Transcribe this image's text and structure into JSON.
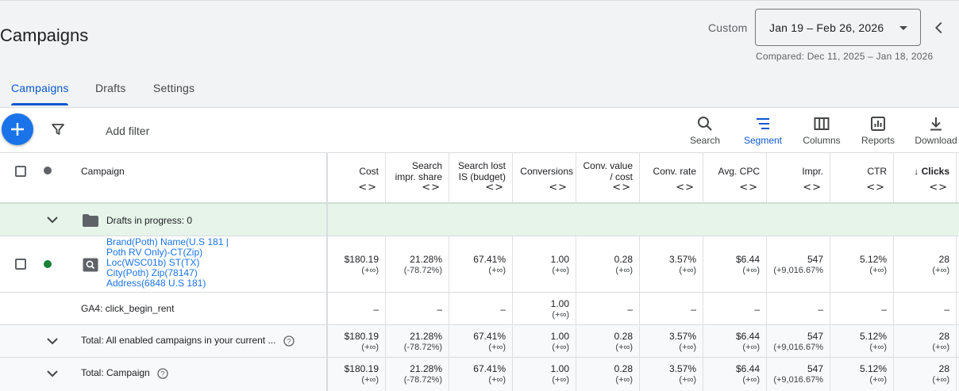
{
  "page": {
    "title": "Campaigns",
    "date_range_label": "Custom",
    "date_range": "Jan 19 – Feb 26, 2026",
    "compared": "Compared: Dec 11, 2025 – Jan 18, 2026"
  },
  "tabs": [
    {
      "label": "Campaigns",
      "active": true
    },
    {
      "label": "Drafts",
      "active": false
    },
    {
      "label": "Settings",
      "active": false
    }
  ],
  "toolbar": {
    "add_filter": "Add filter",
    "tools": [
      {
        "label": "Search",
        "icon": "search-icon"
      },
      {
        "label": "Segment",
        "icon": "segment-icon",
        "active": true
      },
      {
        "label": "Columns",
        "icon": "columns-icon"
      },
      {
        "label": "Reports",
        "icon": "reports-icon"
      },
      {
        "label": "Download",
        "icon": "download-icon"
      }
    ]
  },
  "table": {
    "campaign_header": "Campaign",
    "columns": [
      {
        "l1": "Cost",
        "l2": ""
      },
      {
        "l1": "Search",
        "l2": "impr. share"
      },
      {
        "l1": "Search lost",
        "l2": "IS (budget)"
      },
      {
        "l1": "Conversions",
        "l2": ""
      },
      {
        "l1": "Conv. value",
        "l2": "/ cost"
      },
      {
        "l1": "Conv. rate",
        "l2": ""
      },
      {
        "l1": "Avg. CPC",
        "l2": ""
      },
      {
        "l1": "Impr.",
        "l2": ""
      },
      {
        "l1": "CTR",
        "l2": ""
      },
      {
        "l1": "↓ Clicks",
        "l2": ""
      }
    ],
    "drafts_row": {
      "label": "Drafts in progress: 0"
    },
    "campaign_row": {
      "name": "Brand(Poth) Name(U.S 181 | Poth RV Only)-CT(Zip) Loc(WSC01b) ST(TX) City(Poth) Zip(78147) Address(6848 U.S 181)",
      "values": [
        {
          "v": "$180.19",
          "d": "(+∞)"
        },
        {
          "v": "21.28%",
          "d": "(-78.72%)"
        },
        {
          "v": "67.41%",
          "d": "(+∞)"
        },
        {
          "v": "1.00",
          "d": "(+∞)"
        },
        {
          "v": "0.28",
          "d": "(+∞)"
        },
        {
          "v": "3.57%",
          "d": "(+∞)"
        },
        {
          "v": "$6.44",
          "d": "(+∞)"
        },
        {
          "v": "547",
          "d": "(+9,016.67%"
        },
        {
          "v": "5.12%",
          "d": "(+∞)"
        },
        {
          "v": "28",
          "d": "(+∞)"
        }
      ]
    },
    "ga4_row": {
      "label": "GA4: click_begin_rent",
      "values": [
        {
          "v": "–",
          "d": ""
        },
        {
          "v": "–",
          "d": ""
        },
        {
          "v": "–",
          "d": ""
        },
        {
          "v": "1.00",
          "d": "(+∞)"
        },
        {
          "v": "–",
          "d": ""
        },
        {
          "v": "–",
          "d": ""
        },
        {
          "v": "–",
          "d": ""
        },
        {
          "v": "–",
          "d": ""
        },
        {
          "v": "–",
          "d": ""
        },
        {
          "v": "–",
          "d": ""
        }
      ]
    },
    "total_enabled_row": {
      "label": "Total: All enabled campaigns in your current ...",
      "values": [
        {
          "v": "$180.19",
          "d": "(+∞)"
        },
        {
          "v": "21.28%",
          "d": "(-78.72%)"
        },
        {
          "v": "67.41%",
          "d": "(+∞)"
        },
        {
          "v": "1.00",
          "d": "(+∞)"
        },
        {
          "v": "0.28",
          "d": "(+∞)"
        },
        {
          "v": "3.57%",
          "d": "(+∞)"
        },
        {
          "v": "$6.44",
          "d": "(+∞)"
        },
        {
          "v": "547",
          "d": "(+9,016.67%"
        },
        {
          "v": "5.12%",
          "d": "(+∞)"
        },
        {
          "v": "28",
          "d": "(+∞)"
        }
      ]
    },
    "total_campaign_row": {
      "label": "Total: Campaign",
      "values": [
        {
          "v": "$180.19",
          "d": "(+∞)"
        },
        {
          "v": "21.28%",
          "d": "(-78.72%)"
        },
        {
          "v": "67.41%",
          "d": "(+∞)"
        },
        {
          "v": "1.00",
          "d": "(+∞)"
        },
        {
          "v": "0.28",
          "d": "(+∞)"
        },
        {
          "v": "3.57%",
          "d": "(+∞)"
        },
        {
          "v": "$6.44",
          "d": "(+∞)"
        },
        {
          "v": "547",
          "d": "(+9,016.67%"
        },
        {
          "v": "5.12%",
          "d": "(+∞)"
        },
        {
          "v": "28",
          "d": "(+∞)"
        }
      ]
    }
  },
  "colors": {
    "accent": "#0b57d0",
    "fab": "#1a73e8",
    "enabled_dot": "#188038",
    "drafts_row_bg": "#e6f4ea"
  }
}
